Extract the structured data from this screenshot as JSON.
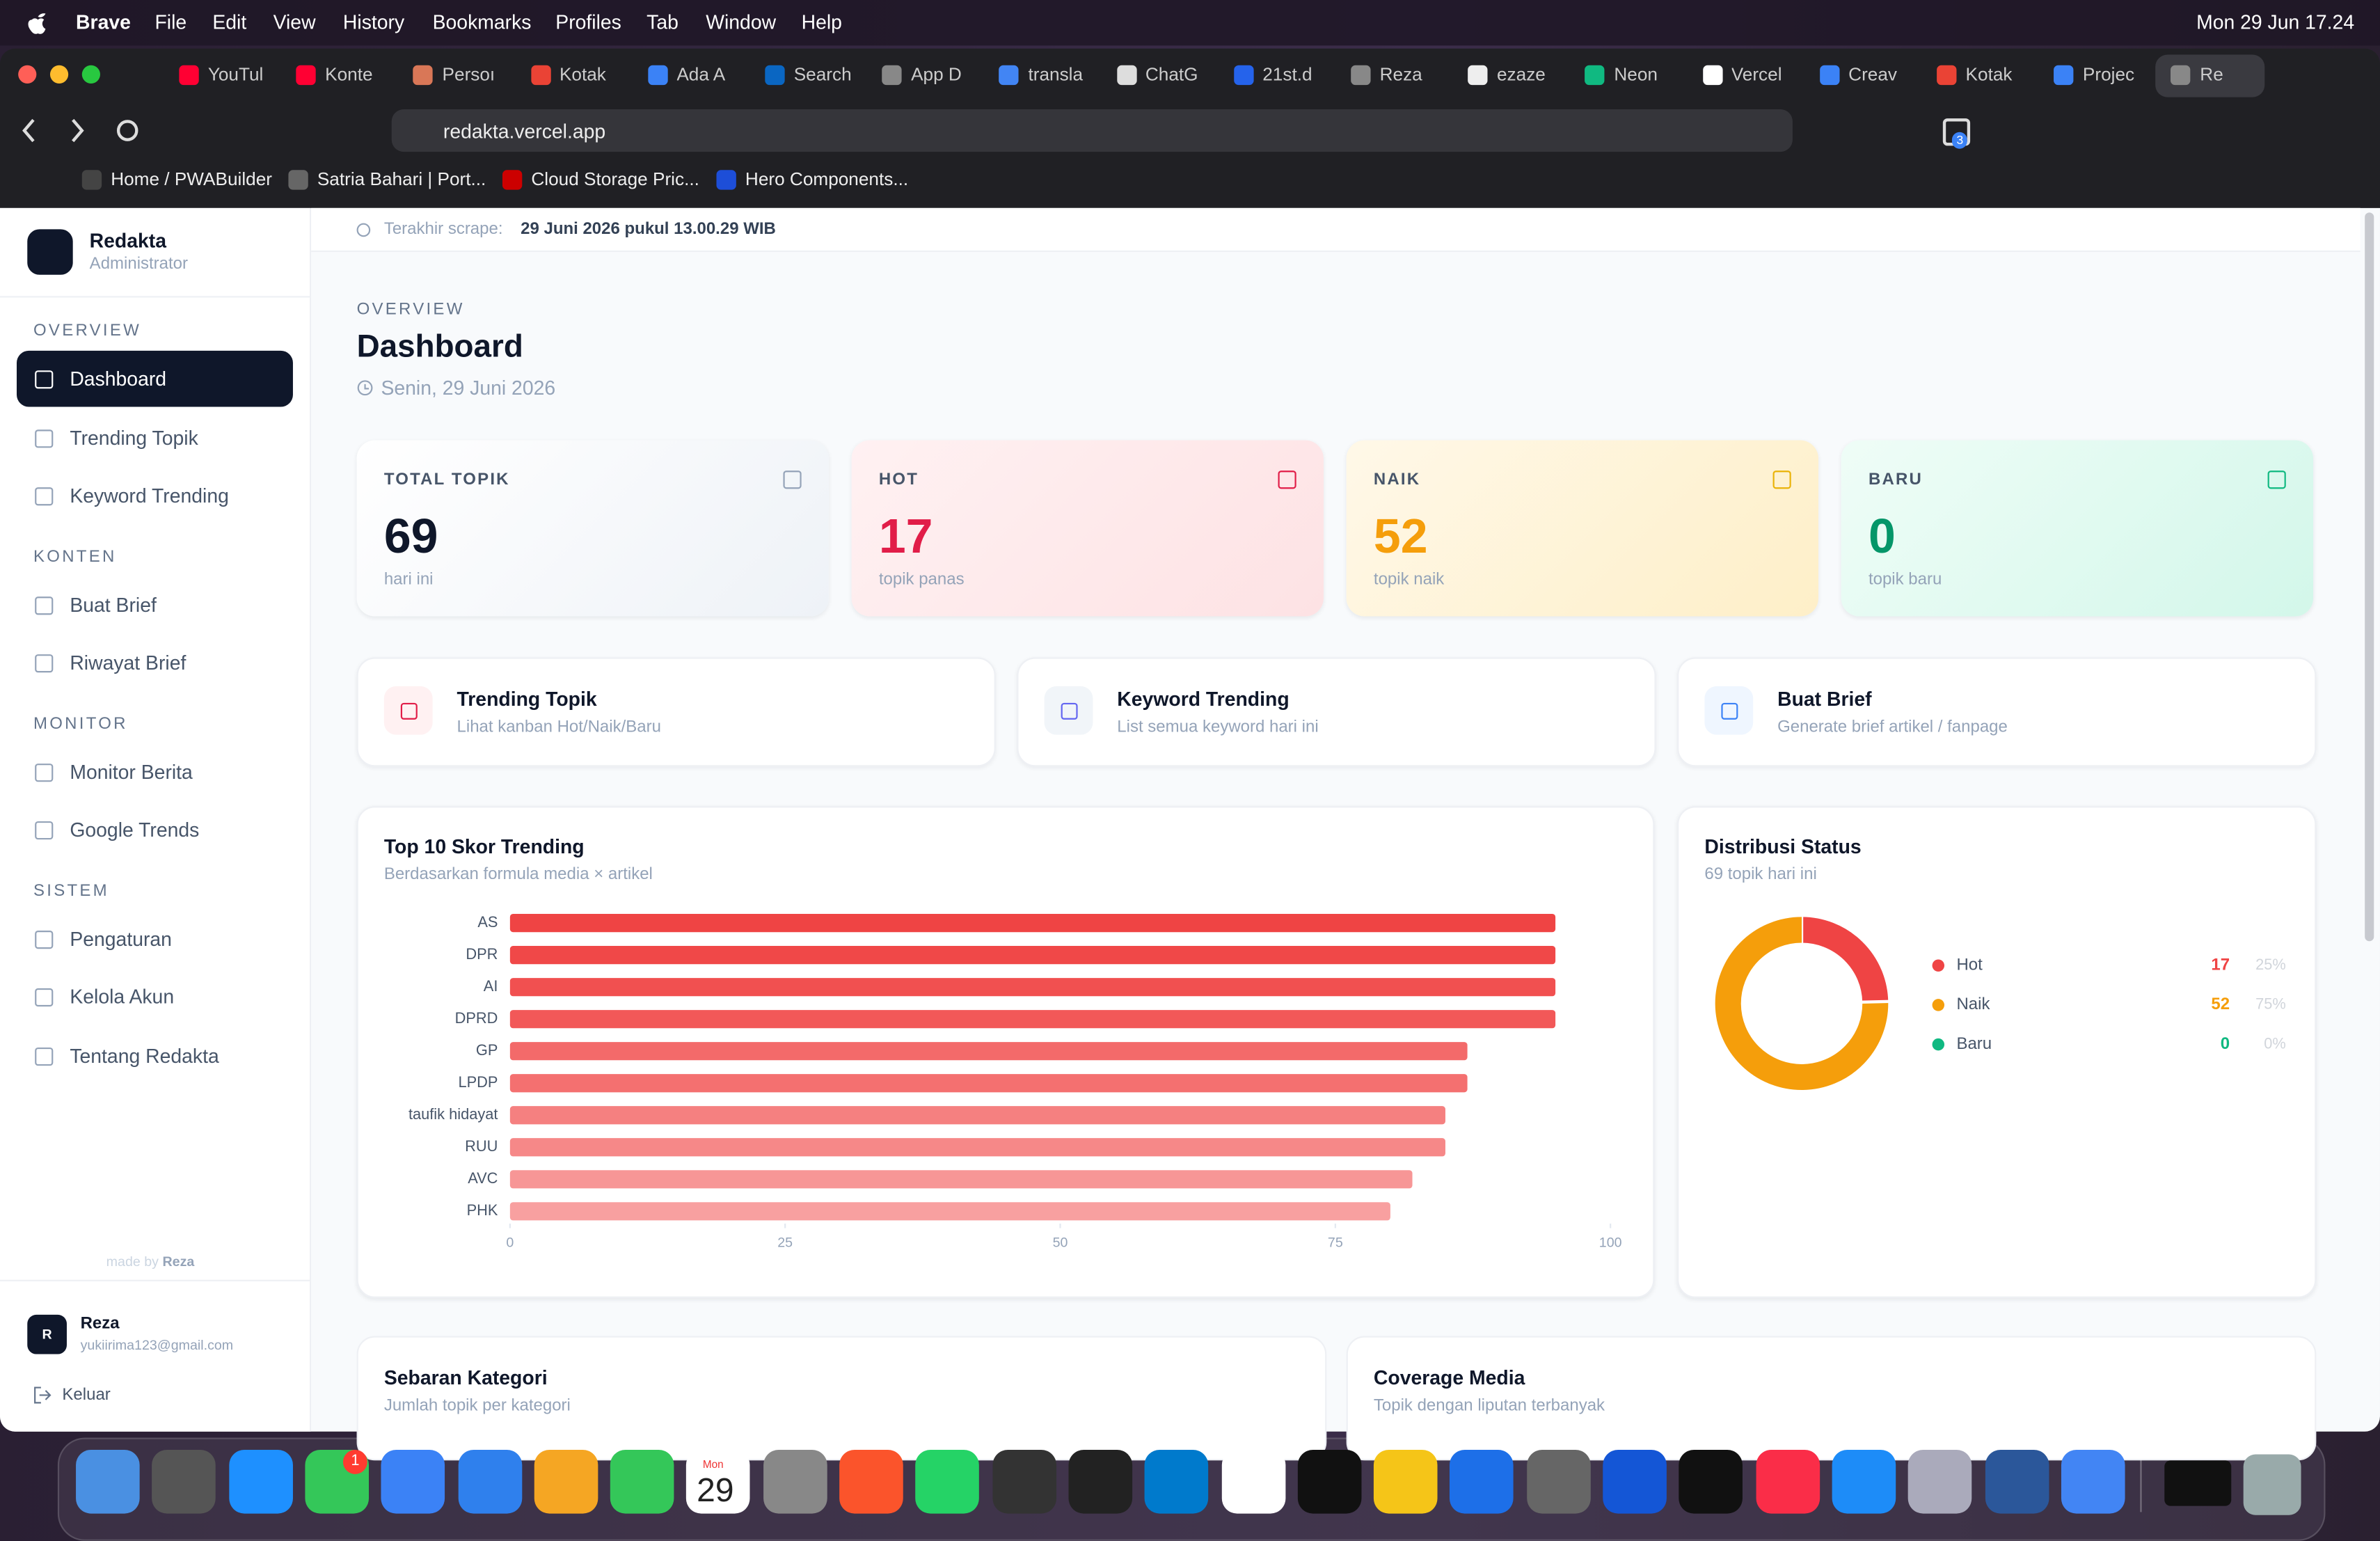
{
  "menu_bar": {
    "app": "Brave",
    "items": [
      "File",
      "Edit",
      "View",
      "History",
      "Bookmarks",
      "Profiles",
      "Tab",
      "Window",
      "Help"
    ],
    "clock": "Mon 29 Jun 17.24"
  },
  "tabs": [
    "YouTul",
    "Konte",
    "Persoı",
    "Kotak",
    "Ada A",
    "Search",
    "App D",
    "transla",
    "ChatG",
    "21st.d",
    "Reza",
    "ezaze",
    "Neon",
    "Vercel",
    "Creav",
    "Kotak",
    "Projec",
    "Re"
  ],
  "address_bar": {
    "url": "redakta.vercel.app"
  },
  "extension_badge": 3,
  "bookmarks": [
    "Home / PWABuilder",
    "Satria Bahari | Port...",
    "Cloud Storage Pric...",
    "Hero Components..."
  ],
  "sidebar": {
    "brand": "Redakta",
    "role": "Administrator",
    "sections": [
      {
        "title": "OVERVIEW",
        "items": [
          "Dashboard",
          "Trending Topik",
          "Keyword Trending"
        ]
      },
      {
        "title": "KONTEN",
        "items": [
          "Buat Brief",
          "Riwayat Brief"
        ]
      },
      {
        "title": "MONITOR",
        "items": [
          "Monitor Berita",
          "Google Trends"
        ]
      },
      {
        "title": "SISTEM",
        "items": [
          "Pengaturan",
          "Kelola Akun",
          "Tentang Redakta"
        ]
      }
    ],
    "credit": {
      "prefix": "made by",
      "name": "Reza"
    },
    "user": {
      "initial": "R",
      "name": "Reza",
      "email": "yukiirima123@gmail.com"
    },
    "logout": "Keluar"
  },
  "header": {
    "scrape_label": "Terakhir scrape:",
    "scrape_time": "29 Juni 2026 pukul 13.00.29 WIB",
    "eyebrow": "OVERVIEW",
    "title": "Dashboard",
    "date": "Senin, 29 Juni 2026"
  },
  "stats": [
    {
      "label": "TOTAL TOPIK",
      "value": 69,
      "caption": "hari ini"
    },
    {
      "label": "HOT",
      "value": 17,
      "caption": "topik panas"
    },
    {
      "label": "NAIK",
      "value": 52,
      "caption": "topik naik"
    },
    {
      "label": "BARU",
      "value": 0,
      "caption": "topik baru"
    }
  ],
  "quick_links": [
    {
      "title": "Trending Topik",
      "subtitle": "Lihat kanban Hot/Naik/Baru"
    },
    {
      "title": "Keyword Trending",
      "subtitle": "List semua keyword hari ini"
    },
    {
      "title": "Buat Brief",
      "subtitle": "Generate brief artikel / fanpage"
    }
  ],
  "chart_data": [
    {
      "type": "bar",
      "orientation": "horizontal",
      "title": "Top 10 Skor Trending",
      "subtitle": "Berdasarkan formula media × artikel",
      "categories": [
        "AS",
        "DPR",
        "AI",
        "DPRD",
        "GP",
        "LPDP",
        "taufik hidayat",
        "RUU",
        "AVC",
        "PHK"
      ],
      "values": [
        95,
        95,
        95,
        95,
        87,
        87,
        85,
        85,
        82,
        80
      ],
      "colors": [
        "#ef4444",
        "#f04848",
        "#f15050",
        "#f25858",
        "#f36a6a",
        "#f47070",
        "#f58080",
        "#f68888",
        "#f79696",
        "#f8a0a0"
      ],
      "xlim": [
        0,
        100
      ],
      "xticks": [
        0,
        25,
        50,
        75,
        100
      ]
    },
    {
      "type": "pie",
      "donut": true,
      "title": "Distribusi Status",
      "subtitle": "69 topik hari ini",
      "categories": [
        "Hot",
        "Naik",
        "Baru"
      ],
      "values": [
        17,
        52,
        0
      ],
      "percent_labels": [
        "25%",
        "75%",
        "0%"
      ],
      "colors": [
        "#ef4444",
        "#f59e0b",
        "#10b981"
      ]
    }
  ],
  "bottom_cards": [
    {
      "title": "Sebaran Kategori",
      "subtitle": "Jumlah topik per kategori"
    },
    {
      "title": "Coverage Media",
      "subtitle": "Topik dengan liputan terbanyak"
    }
  ],
  "dock": {
    "messages_badge": 1,
    "calendar_month": "Mon",
    "calendar_day": "29"
  }
}
